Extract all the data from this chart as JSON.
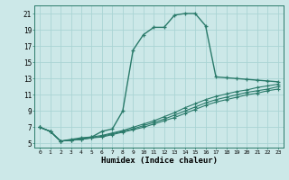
{
  "xlabel": "Humidex (Indice chaleur)",
  "ylabel": "",
  "bg_color": "#cce8e8",
  "grid_color": "#aad4d4",
  "line_color": "#2a7a6a",
  "xlim": [
    -0.5,
    23.5
  ],
  "ylim": [
    4.5,
    22
  ],
  "xticks": [
    0,
    1,
    2,
    3,
    4,
    5,
    6,
    7,
    8,
    9,
    10,
    11,
    12,
    13,
    14,
    15,
    16,
    17,
    18,
    19,
    20,
    21,
    22,
    23
  ],
  "yticks": [
    5,
    7,
    9,
    11,
    13,
    15,
    17,
    19,
    21
  ],
  "curve1_x": [
    0,
    1,
    2,
    3,
    4,
    5,
    6,
    7,
    8,
    9,
    10,
    11,
    12,
    13,
    14,
    15,
    16,
    17,
    18,
    19,
    20,
    21,
    22,
    23
  ],
  "curve1_y": [
    7.0,
    6.5,
    5.3,
    5.5,
    5.7,
    5.8,
    6.5,
    6.8,
    9.0,
    16.5,
    18.4,
    19.3,
    19.3,
    20.8,
    21.0,
    21.0,
    19.5,
    13.2,
    13.1,
    13.0,
    12.9,
    12.8,
    12.7,
    12.6
  ],
  "curve2_x": [
    0,
    1,
    2,
    3,
    4,
    5,
    6,
    7,
    8,
    9,
    10,
    11,
    12,
    13,
    14,
    15,
    16,
    17,
    18,
    19,
    20,
    21,
    22,
    23
  ],
  "curve2_y": [
    7.0,
    6.5,
    5.3,
    5.4,
    5.6,
    5.8,
    6.0,
    6.3,
    6.6,
    7.0,
    7.4,
    7.8,
    8.3,
    8.8,
    9.4,
    9.9,
    10.4,
    10.8,
    11.1,
    11.4,
    11.6,
    11.9,
    12.1,
    12.3
  ],
  "curve3_x": [
    0,
    1,
    2,
    3,
    4,
    5,
    6,
    7,
    8,
    9,
    10,
    11,
    12,
    13,
    14,
    15,
    16,
    17,
    18,
    19,
    20,
    21,
    22,
    23
  ],
  "curve3_y": [
    7.0,
    6.5,
    5.3,
    5.4,
    5.5,
    5.7,
    5.9,
    6.2,
    6.5,
    6.8,
    7.2,
    7.6,
    8.0,
    8.5,
    9.0,
    9.5,
    10.0,
    10.4,
    10.7,
    11.0,
    11.3,
    11.5,
    11.7,
    12.0
  ],
  "curve4_x": [
    0,
    1,
    2,
    3,
    4,
    5,
    6,
    7,
    8,
    9,
    10,
    11,
    12,
    13,
    14,
    15,
    16,
    17,
    18,
    19,
    20,
    21,
    22,
    23
  ],
  "curve4_y": [
    7.0,
    6.5,
    5.3,
    5.4,
    5.5,
    5.7,
    5.8,
    6.1,
    6.4,
    6.7,
    7.0,
    7.4,
    7.8,
    8.2,
    8.7,
    9.2,
    9.7,
    10.1,
    10.4,
    10.7,
    11.0,
    11.2,
    11.5,
    11.7
  ]
}
